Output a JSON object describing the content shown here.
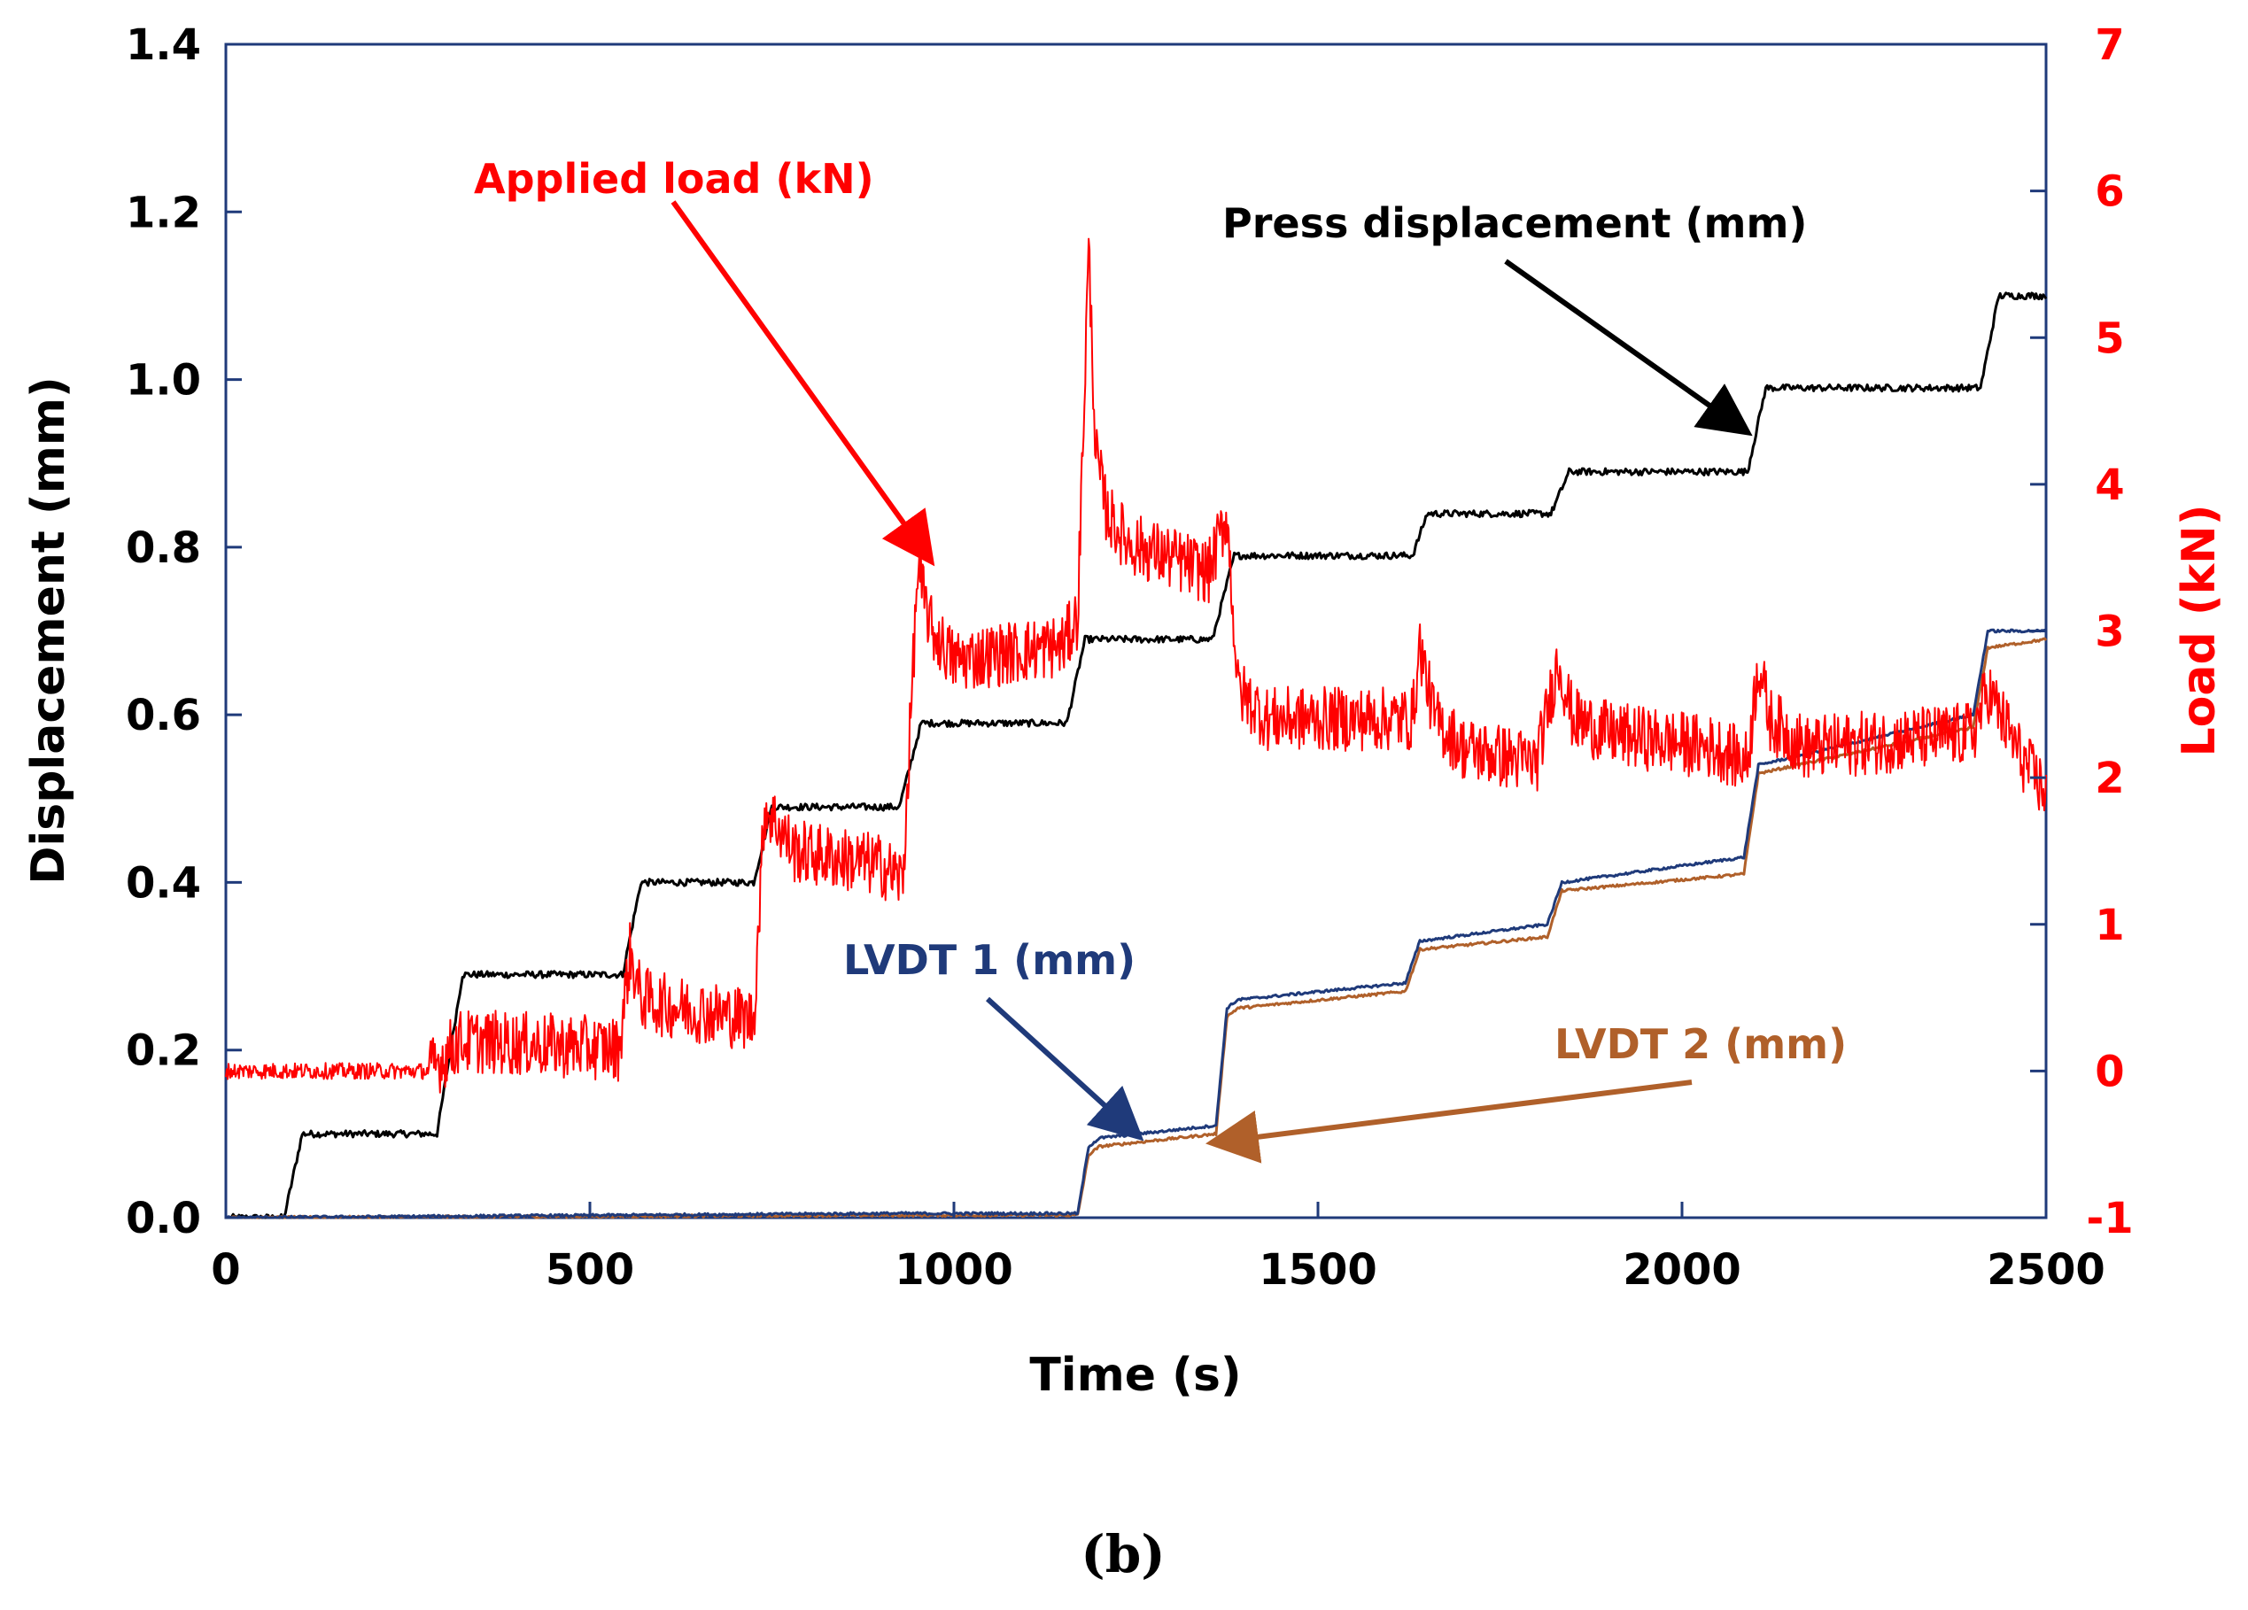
{
  "chart_data": {
    "type": "line",
    "xlabel": "Time (s)",
    "ylabel_left": "Displacement (mm)",
    "ylabel_right": "Load (kN)",
    "xlim": [
      0,
      2500
    ],
    "ylim_left": [
      0,
      1.4
    ],
    "ylim_right": [
      -1,
      7
    ],
    "x_ticks": [
      "0",
      "500",
      "1000",
      "1500",
      "2000",
      "2500"
    ],
    "y_left_ticks": [
      "0.0",
      "0.2",
      "0.4",
      "0.6",
      "0.8",
      "1.0",
      "1.2",
      "1.4"
    ],
    "y_right_ticks": [
      "-1",
      "0",
      "1",
      "2",
      "3",
      "4",
      "5",
      "6",
      "7"
    ],
    "grid": false,
    "panel_label": "(b)",
    "colors": {
      "press": "#000000",
      "load": "#ff0000",
      "lvdt1": "#1f3a7a",
      "lvdt2": "#b0602a"
    },
    "series": [
      {
        "name": "Press displacement (mm)",
        "axis": "left",
        "x": [
          0,
          80,
          105,
          290,
          325,
          545,
          570,
          725,
          750,
          925,
          955,
          1155,
          1180,
          1355,
          1385,
          1630,
          1650,
          1820,
          1845,
          2090,
          2115,
          2410,
          2435,
          2500
        ],
        "y": [
          0,
          0,
          0.1,
          0.1,
          0.29,
          0.29,
          0.4,
          0.4,
          0.49,
          0.49,
          0.59,
          0.59,
          0.69,
          0.69,
          0.79,
          0.79,
          0.84,
          0.84,
          0.89,
          0.89,
          0.99,
          0.99,
          1.1,
          1.1
        ]
      },
      {
        "name": "Applied load (kN)",
        "axis": "right",
        "x": [
          0,
          280,
          300,
          320,
          350,
          540,
          555,
          570,
          600,
          725,
          740,
          755,
          780,
          900,
          930,
          950,
          970,
          1000,
          1150,
          1170,
          1185,
          1195,
          1210,
          1240,
          1350,
          1375,
          1390,
          1430,
          1630,
          1640,
          1660,
          1700,
          1800,
          1830,
          1850,
          1900,
          2050,
          2090,
          2105,
          2120,
          2170,
          2400,
          2420,
          2440,
          2470,
          2500
        ],
        "y": [
          0.0,
          0.0,
          0.1,
          0.2,
          0.2,
          0.15,
          0.8,
          0.5,
          0.45,
          0.35,
          1.8,
          1.7,
          1.5,
          1.4,
          1.3,
          3.4,
          3.0,
          2.8,
          2.9,
          3.1,
          5.6,
          4.2,
          3.8,
          3.6,
          3.4,
          3.8,
          2.6,
          2.4,
          2.4,
          2.9,
          2.4,
          2.2,
          2.1,
          2.8,
          2.4,
          2.3,
          2.2,
          2.1,
          2.8,
          2.4,
          2.2,
          2.3,
          2.6,
          2.4,
          2.1,
          1.9
        ]
      },
      {
        "name": "LVDT 1 (mm)",
        "axis": "left",
        "x": [
          0,
          900,
          1170,
          1185,
          1200,
          1360,
          1375,
          1390,
          1620,
          1640,
          1815,
          1835,
          2085,
          2105,
          2400,
          2420,
          2500
        ],
        "y": [
          0,
          0.005,
          0.005,
          0.085,
          0.095,
          0.11,
          0.25,
          0.26,
          0.28,
          0.33,
          0.35,
          0.4,
          0.43,
          0.54,
          0.6,
          0.7,
          0.7
        ]
      },
      {
        "name": "LVDT 2 (mm)",
        "axis": "left",
        "x": [
          0,
          900,
          1170,
          1185,
          1200,
          1360,
          1375,
          1390,
          1620,
          1640,
          1815,
          1835,
          2085,
          2105,
          2400,
          2420,
          2500
        ],
        "y": [
          0,
          0.003,
          0.003,
          0.075,
          0.085,
          0.1,
          0.24,
          0.25,
          0.27,
          0.32,
          0.335,
          0.39,
          0.41,
          0.53,
          0.585,
          0.68,
          0.69
        ]
      }
    ],
    "annotations": [
      {
        "text": "Applied load (kN)",
        "color": "#ff0000",
        "arrow_to": [
          965,
          3.5
        ]
      },
      {
        "text": "Press displacement (mm)",
        "color": "#000000",
        "arrow_to": [
          2085,
          0.94
        ]
      },
      {
        "text": "LVDT 1 (mm)",
        "color": "#1f3a7a",
        "arrow_to": [
          1250,
          0.1
        ]
      },
      {
        "text": "LVDT 2 (mm)",
        "color": "#b0602a",
        "arrow_to": [
          1360,
          0.09
        ]
      }
    ]
  }
}
